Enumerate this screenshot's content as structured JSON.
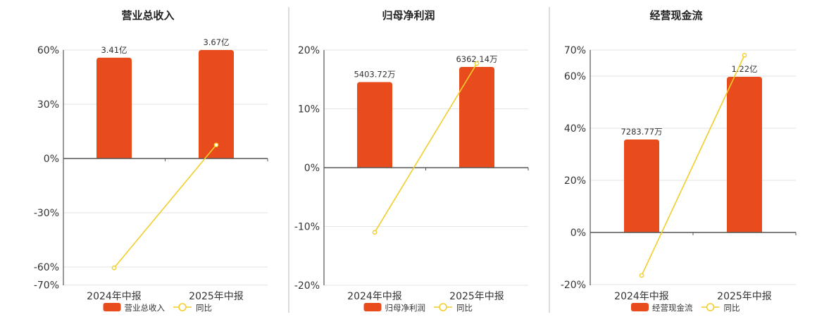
{
  "colors": {
    "bar": "#E84C1D",
    "line": "#F2CE2A",
    "text": "#333333"
  },
  "chart_data": [
    {
      "type": "bar",
      "title": "营业总收入",
      "categories": [
        "2024年中报",
        "2025年中报"
      ],
      "series": [
        {
          "name": "营业总收入",
          "type": "bar",
          "values": [
            3.41,
            3.67
          ],
          "labels": [
            "3.41亿",
            "3.67亿"
          ]
        },
        {
          "name": "同比",
          "type": "line",
          "values": [
            -60.5,
            7.5
          ]
        }
      ],
      "ylim_pct": [
        -70,
        60
      ],
      "yticks": [
        60,
        30,
        0,
        -30,
        -60,
        -70
      ],
      "ytick_labels": [
        "60%",
        "30%",
        "0%",
        "-30%",
        "-60%",
        "-70%"
      ],
      "legend": [
        "营业总收入",
        "同比"
      ]
    },
    {
      "type": "bar",
      "title": "归母净利润",
      "categories": [
        "2024年中报",
        "2025年中报"
      ],
      "series": [
        {
          "name": "归母净利润",
          "type": "bar",
          "values": [
            5403.72,
            6362.14
          ],
          "labels": [
            "5403.72万",
            "6362.14万"
          ]
        },
        {
          "name": "同比",
          "type": "line",
          "values": [
            -11,
            17.7
          ]
        }
      ],
      "ylim_pct": [
        -20,
        20
      ],
      "yticks": [
        20,
        10,
        0,
        -10,
        -20
      ],
      "ytick_labels": [
        "20%",
        "10%",
        "0%",
        "-10%",
        "-20%"
      ],
      "legend": [
        "归母净利润",
        "同比"
      ]
    },
    {
      "type": "bar",
      "title": "经营现金流",
      "categories": [
        "2024年中报",
        "2025年中报"
      ],
      "series": [
        {
          "name": "经营现金流",
          "type": "bar",
          "values": [
            7283.77,
            12200
          ],
          "labels": [
            "7283.77万",
            "1.22亿"
          ]
        },
        {
          "name": "同比",
          "type": "line",
          "values": [
            -16.5,
            68
          ]
        }
      ],
      "ylim_pct": [
        -20,
        70
      ],
      "yticks": [
        70,
        60,
        40,
        20,
        0,
        -20
      ],
      "ytick_labels": [
        "70%",
        "60%",
        "40%",
        "20%",
        "0%",
        "-20%"
      ],
      "legend": [
        "经营现金流",
        "同比"
      ]
    }
  ]
}
